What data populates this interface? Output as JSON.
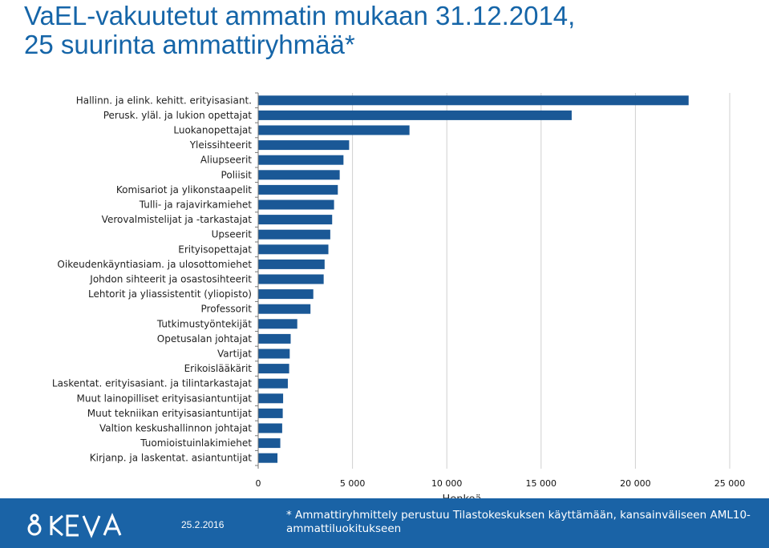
{
  "page": {
    "title_line1": "VaEL-vakuutetut ammatin mukaan 31.12.2014,",
    "title_line2": "25 suurinta ammattiryhmää*"
  },
  "footer": {
    "logo_text": "KEVA",
    "date": "25.2.2016",
    "footnote": "* Ammattiryhmittely perustuu Tilastokeskuksen käyttämään, kansainväliseen AML10-ammattiluokitukseen",
    "background_color": "#1a63a6"
  },
  "chart_data": {
    "type": "bar",
    "orientation": "horizontal",
    "bar_color": "#1a5896",
    "categories": [
      "Hallinn. ja elink. kehitt. erityisasiant.",
      "Perusk. yläl. ja lukion opettajat",
      "Luokanopettajat",
      "Yleissihteerit",
      "Aliupseerit",
      "Poliisit",
      "Komisariot ja ylikonstaapelit",
      "Tulli- ja rajavirkamiehet",
      "Verovalmistelijat ja -tarkastajat",
      "Upseerit",
      "Erityisopettajat",
      "Oikeudenkäyntiasiam. ja ulosottomiehet",
      "Johdon sihteerit ja osastosihteerit",
      "Lehtorit ja yliassistentit (yliopisto)",
      "Professorit",
      "Tutkimustyöntekijät",
      "Opetusalan johtajat",
      "Vartijat",
      "Erikoislääkärit",
      "Laskentat. erityisasiant. ja tilintarkastajat",
      "Muut lainopilliset erityisasiantuntijat",
      "Muut tekniikan erityisasiantuntijat",
      "Valtion keskushallinnon johtajat",
      "Tuomioistuinlakimiehet",
      "Kirjanp. ja laskentat. asiantuntijat"
    ],
    "values": [
      22800,
      16600,
      8000,
      4800,
      4500,
      4300,
      4200,
      4000,
      3900,
      3800,
      3700,
      3500,
      3450,
      2900,
      2750,
      2050,
      1700,
      1650,
      1620,
      1550,
      1300,
      1280,
      1250,
      1150,
      1000
    ],
    "xlim": [
      0,
      25000
    ],
    "xticks": [
      0,
      5000,
      10000,
      15000,
      20000,
      25000
    ],
    "xtick_labels": [
      "0",
      "5 000",
      "10 000",
      "15 000",
      "20 000",
      "25 000"
    ],
    "xlabel": "Henkeä",
    "ylabel": "",
    "grid": "vertical"
  }
}
